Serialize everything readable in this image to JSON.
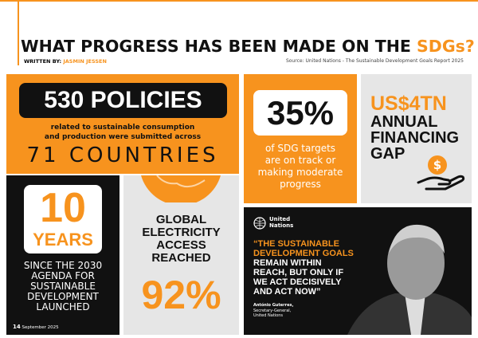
{
  "header": {
    "title": "WHAT PROGRESS HAS BEEN MADE ON THE",
    "title_highlight": "SDGs?",
    "byline_label": "WRITTEN BY:",
    "author": "JASMIN JESSEN",
    "source": "Source: United Nations - The Sustainable Development Goals Report 2025"
  },
  "policies": {
    "headline": "530 POLICIES",
    "text": [
      "related to sustainable consumption",
      "and production were submitted across"
    ],
    "countries": "71 COUNTRIES"
  },
  "targets": {
    "headline": "35%",
    "text": [
      "of SDG targets",
      "are on track or",
      "making moderate",
      "progress"
    ]
  },
  "financing": {
    "headline": "US$4TN",
    "text": [
      "ANNUAL",
      "FINANCING",
      "GAP"
    ]
  },
  "years": {
    "number": "10",
    "unit": "YEARS",
    "text": [
      "SINCE THE 2030",
      "AGENDA FOR",
      "SUSTAINABLE",
      "DEVELOPMENT",
      "LAUNCHED"
    ]
  },
  "electricity": {
    "text": [
      "GLOBAL",
      "ELECTRICITY",
      "ACCESS",
      "REACHED"
    ],
    "headline": "92%"
  },
  "quote": {
    "org": [
      "United",
      "Nations"
    ],
    "highlight": [
      "“THE SUSTAINABLE",
      "DEVELOPMENT GOALS"
    ],
    "text": [
      "REMAIN WITHIN",
      "REACH, BUT ONLY IF",
      "WE ACT DECISIVELY",
      "AND ACT NOW”"
    ],
    "attribution": [
      "António Guterres,",
      "Secretary-General,",
      "United Nations"
    ]
  },
  "footer": {
    "page": "14",
    "date": "September 2025"
  }
}
